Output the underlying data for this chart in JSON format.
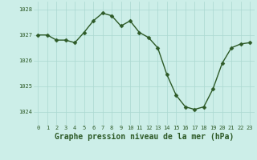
{
  "x": [
    0,
    1,
    2,
    3,
    4,
    5,
    6,
    7,
    8,
    9,
    10,
    11,
    12,
    13,
    14,
    15,
    16,
    17,
    18,
    19,
    20,
    21,
    22,
    23
  ],
  "y": [
    1027.0,
    1027.0,
    1026.8,
    1026.8,
    1026.7,
    1027.1,
    1027.55,
    1027.85,
    1027.75,
    1027.35,
    1027.55,
    1027.1,
    1026.9,
    1026.5,
    1025.45,
    1024.65,
    1024.2,
    1024.1,
    1024.2,
    1024.9,
    1025.9,
    1026.5,
    1026.65,
    1026.7
  ],
  "line_color": "#2d5a27",
  "marker_color": "#2d5a27",
  "bg_color": "#cceee8",
  "grid_color": "#aad8d0",
  "xlabel": "Graphe pression niveau de la mer (hPa)",
  "ylim": [
    1023.5,
    1028.3
  ],
  "yticks": [
    1024,
    1025,
    1026,
    1027,
    1028
  ],
  "xticks": [
    0,
    1,
    2,
    3,
    4,
    5,
    6,
    7,
    8,
    9,
    10,
    11,
    12,
    13,
    14,
    15,
    16,
    17,
    18,
    19,
    20,
    21,
    22,
    23
  ],
  "tick_label_fontsize": 5.0,
  "xlabel_fontsize": 7.0,
  "ylabel_fontsize": 5.0,
  "line_width": 1.0,
  "marker_size": 2.5
}
